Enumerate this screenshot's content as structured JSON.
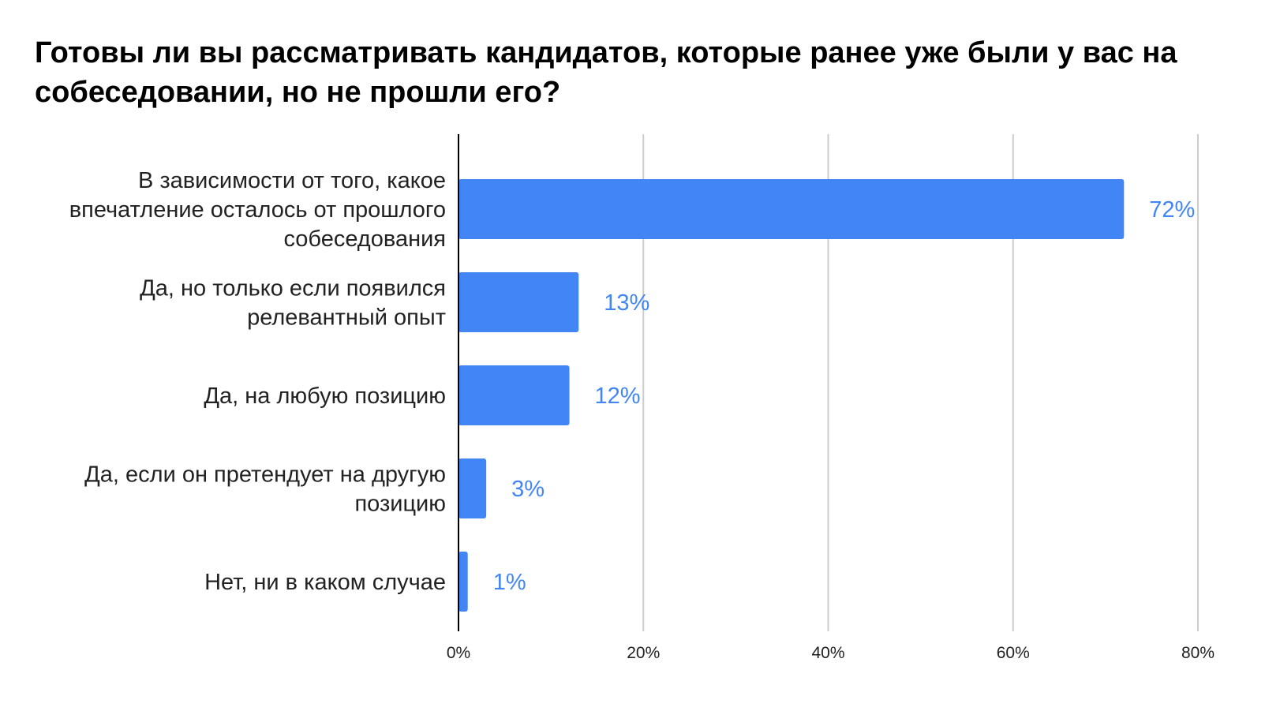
{
  "chart_data": {
    "type": "bar",
    "orientation": "horizontal",
    "title": "Готовы ли вы рассматривать кандидатов, которые ранее уже были у вас на собеседовании, но не прошли его?",
    "categories": [
      "В зависимости от того, какое впечатление осталось от прошлого собеседования",
      "Да, но только если появился релевантный опыт",
      "Да, на любую позицию",
      "Да, если он претендует на другую позицию",
      "Нет, ни в каком случае"
    ],
    "category_lines": [
      [
        "В зависимости от того, какое",
        "впечатление осталось от прошлого",
        "собеседования"
      ],
      [
        "Да, но только если появился",
        "релевантный опыт"
      ],
      [
        "Да, на любую позицию"
      ],
      [
        "Да, если он претендует на другую",
        "позицию"
      ],
      [
        "Нет, ни в каком случае"
      ]
    ],
    "values": [
      72,
      13,
      12,
      3,
      1
    ],
    "data_labels": [
      "72%",
      "13%",
      "12%",
      "3%",
      "1%"
    ],
    "xlim": [
      0,
      80
    ],
    "xticks": [
      0,
      20,
      40,
      60,
      80
    ],
    "xtick_labels": [
      "0%",
      "20%",
      "40%",
      "60%",
      "80%"
    ],
    "xlabel": "",
    "ylabel": "",
    "grid": true,
    "legend": "none",
    "colors": {
      "bar": "#4285f4",
      "data_label": "#4285f4",
      "grid": "#cccccc",
      "axis": "#000000",
      "text": "#222222"
    }
  }
}
